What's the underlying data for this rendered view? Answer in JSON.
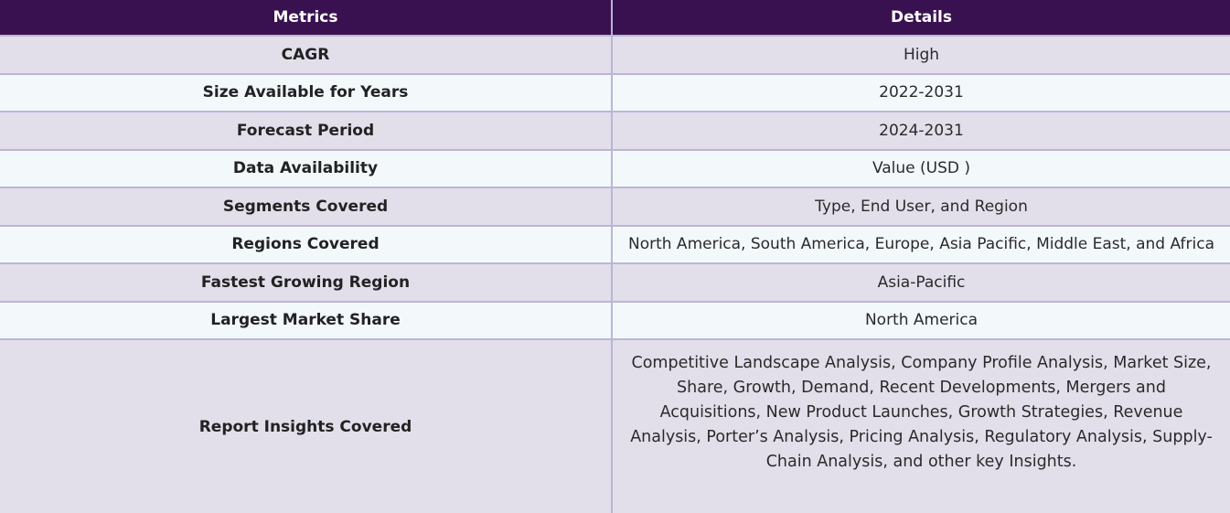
{
  "header": {
    "metrics_label": "Metrics",
    "details_label": "Details"
  },
  "rows": [
    {
      "metric": "CAGR",
      "detail": "High"
    },
    {
      "metric": "Size Available for Years",
      "detail": "2022-2031"
    },
    {
      "metric": "Forecast Period",
      "detail": "2024-2031"
    },
    {
      "metric": "Data Availability",
      "detail": "Value (USD )"
    },
    {
      "metric": "Segments Covered",
      "detail": "Type, End User, and Region"
    },
    {
      "metric": "Regions Covered",
      "detail": "North America, South America, Europe, Asia Pacific, Middle East, and Africa"
    },
    {
      "metric": "Fastest Growing Region",
      "detail": "Asia-Pacific"
    },
    {
      "metric": "Largest Market Share",
      "detail": "North America"
    },
    {
      "metric": "Report Insights Covered",
      "detail": "Competitive Landscape Analysis, Company Profile Analysis, Market Size, Share, Growth, Demand, Recent Developments, Mergers and Acquisitions, New Product Launches, Growth Strategies, Revenue Analysis, Porter’s Analysis, Pricing Analysis, Regulatory Analysis, Supply-Chain Analysis, and other key Insights."
    }
  ]
}
